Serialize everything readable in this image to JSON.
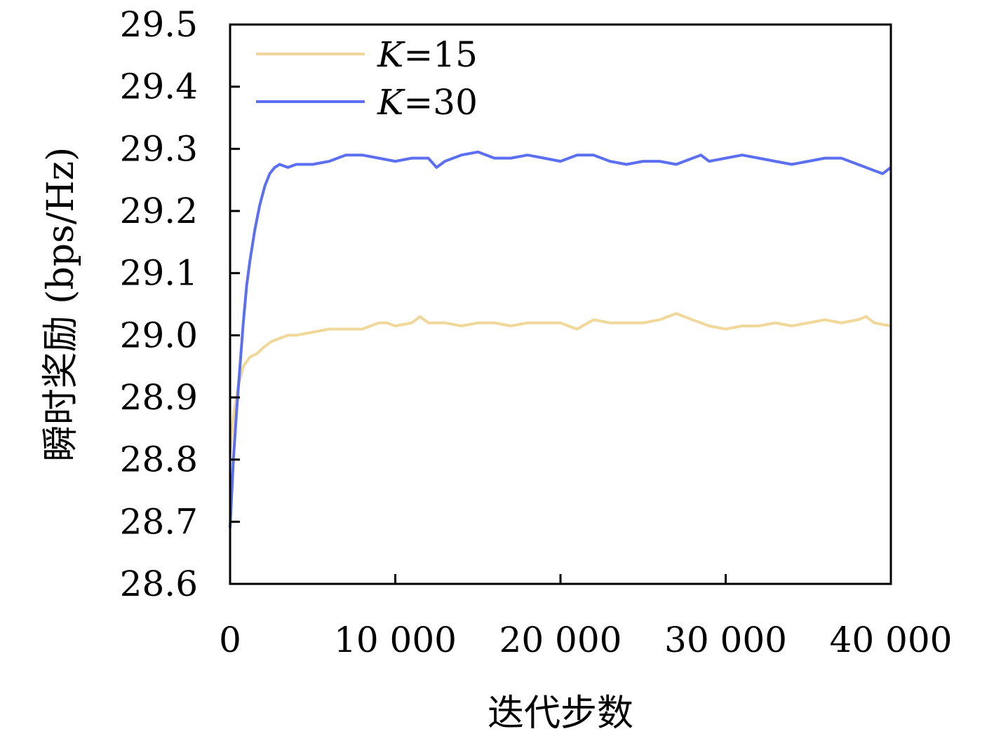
{
  "chart_data": {
    "type": "line",
    "xlabel": "迭代步数",
    "ylabel": "瞬时奖励 (bps/Hz)",
    "xlim": [
      0,
      40000
    ],
    "ylim": [
      28.6,
      29.5
    ],
    "xticks": [
      0,
      10000,
      20000,
      30000,
      40000
    ],
    "xtick_labels": [
      "0",
      "10 000",
      "20 000",
      "30 000",
      "40 000"
    ],
    "yticks": [
      28.6,
      28.7,
      28.8,
      28.9,
      29.0,
      29.1,
      29.2,
      29.3,
      29.4,
      29.5
    ],
    "ytick_labels": [
      "28.6",
      "28.7",
      "28.8",
      "28.9",
      "29.0",
      "29.1",
      "29.2",
      "29.3",
      "29.4",
      "29.5"
    ],
    "grid": false,
    "legend_position": "top-left",
    "series": [
      {
        "name": "K=15",
        "legend_k": "K",
        "legend_rest": "=15",
        "color": "#f0d89a",
        "x": [
          0,
          200,
          500,
          800,
          1200,
          1600,
          2000,
          2500,
          3000,
          3500,
          4000,
          5000,
          6000,
          7000,
          8000,
          9000,
          9500,
          10000,
          11000,
          11500,
          12000,
          13000,
          14000,
          15000,
          16000,
          17000,
          18000,
          19000,
          20000,
          21000,
          22000,
          23000,
          24000,
          25000,
          26000,
          27000,
          28000,
          29000,
          30000,
          31000,
          32000,
          33000,
          34000,
          35000,
          36000,
          37000,
          38000,
          38500,
          39000,
          40000
        ],
        "values": [
          28.81,
          28.87,
          28.92,
          28.95,
          28.965,
          28.97,
          28.98,
          28.99,
          28.995,
          29.0,
          29.0,
          29.005,
          29.01,
          29.01,
          29.01,
          29.02,
          29.02,
          29.015,
          29.02,
          29.03,
          29.02,
          29.02,
          29.015,
          29.02,
          29.02,
          29.015,
          29.02,
          29.02,
          29.02,
          29.01,
          29.025,
          29.02,
          29.02,
          29.02,
          29.025,
          29.035,
          29.025,
          29.015,
          29.01,
          29.015,
          29.015,
          29.02,
          29.015,
          29.02,
          29.025,
          29.02,
          29.025,
          29.03,
          29.02,
          29.015
        ]
      },
      {
        "name": "K=30",
        "legend_k": "K",
        "legend_rest": "=30",
        "color": "#5b6ff0",
        "x": [
          0,
          200,
          400,
          600,
          800,
          1000,
          1200,
          1500,
          1800,
          2100,
          2400,
          2700,
          3000,
          3500,
          4000,
          5000,
          6000,
          7000,
          8000,
          9000,
          10000,
          11000,
          12000,
          12500,
          13000,
          14000,
          15000,
          16000,
          17000,
          18000,
          19000,
          20000,
          21000,
          22000,
          23000,
          24000,
          25000,
          26000,
          27000,
          28000,
          28500,
          29000,
          30000,
          31000,
          32000,
          33000,
          34000,
          35000,
          36000,
          37000,
          38000,
          39000,
          39500,
          40000
        ],
        "values": [
          28.69,
          28.8,
          28.88,
          28.95,
          29.02,
          29.08,
          29.12,
          29.17,
          29.21,
          29.24,
          29.26,
          29.27,
          29.275,
          29.27,
          29.275,
          29.275,
          29.28,
          29.29,
          29.29,
          29.285,
          29.28,
          29.285,
          29.285,
          29.27,
          29.28,
          29.29,
          29.295,
          29.285,
          29.285,
          29.29,
          29.285,
          29.28,
          29.29,
          29.29,
          29.28,
          29.275,
          29.28,
          29.28,
          29.275,
          29.285,
          29.29,
          29.28,
          29.285,
          29.29,
          29.285,
          29.28,
          29.275,
          29.28,
          29.285,
          29.285,
          29.275,
          29.265,
          29.26,
          29.27
        ]
      }
    ]
  }
}
